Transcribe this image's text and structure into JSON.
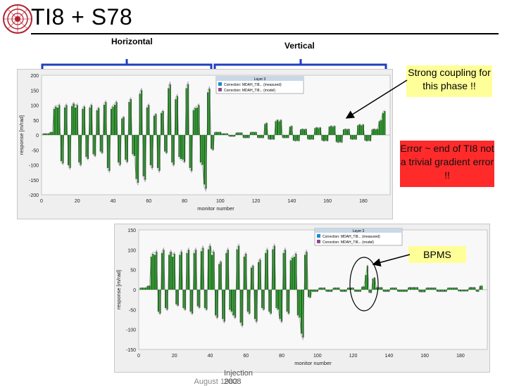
{
  "slide": {
    "title": "TI8 + S78",
    "label_horizontal": "Horizontal",
    "label_vertical": "Vertical",
    "footer": "Injection 2008",
    "footer_overlap": "August 1982",
    "logo_icon": "cern-logo-icon"
  },
  "notes": {
    "coupling": "Strong coupling for this phase !!",
    "error": "Error ~ end of TI8 not a trivial gradient error !!",
    "bpms": "BPMS"
  },
  "colors": {
    "bar": "#117711",
    "line": "#8b4d8b",
    "note_yellow": "#ffff99",
    "note_red": "#ff2a2a",
    "bracket": "#1f3fbf"
  },
  "chart_data": [
    {
      "type": "bar",
      "xlabel": "monitor number",
      "ylabel": "response [m/rad]",
      "xlim": [
        0,
        195
      ],
      "ylim": [
        -200,
        200
      ],
      "xticks": [
        "0",
        "20",
        "40",
        "60",
        "80",
        "100",
        "120",
        "140",
        "160",
        "180"
      ],
      "yticks": [
        "200",
        "150",
        "100",
        "50",
        "0",
        "-50",
        "-100",
        "-150",
        "-200"
      ],
      "legend": {
        "title": "Layer 3",
        "items": [
          "Correction: MDAH_TI8... (measured)",
          "Correction: MDAH_TI8... (model)"
        ],
        "placement": "top-center"
      },
      "amplitude_envelope": [
        [
          0,
          5
        ],
        [
          4,
          10
        ],
        [
          6,
          95
        ],
        [
          8,
          100
        ],
        [
          10,
          -95
        ],
        [
          12,
          100
        ],
        [
          14,
          -110
        ],
        [
          16,
          105
        ],
        [
          18,
          100
        ],
        [
          20,
          -100
        ],
        [
          22,
          95
        ],
        [
          24,
          -80
        ],
        [
          26,
          100
        ],
        [
          28,
          -70
        ],
        [
          30,
          90
        ],
        [
          32,
          -60
        ],
        [
          34,
          110
        ],
        [
          36,
          -120
        ],
        [
          38,
          95
        ],
        [
          40,
          110
        ],
        [
          42,
          -100
        ],
        [
          44,
          60
        ],
        [
          46,
          -90
        ],
        [
          48,
          120
        ],
        [
          50,
          -70
        ],
        [
          52,
          -160
        ],
        [
          54,
          150
        ],
        [
          56,
          -150
        ],
        [
          58,
          100
        ],
        [
          60,
          -110
        ],
        [
          62,
          70
        ],
        [
          64,
          -120
        ],
        [
          66,
          80
        ],
        [
          68,
          -60
        ],
        [
          70,
          170
        ],
        [
          72,
          -100
        ],
        [
          74,
          130
        ],
        [
          76,
          -80
        ],
        [
          78,
          -90
        ],
        [
          80,
          170
        ],
        [
          82,
          -120
        ],
        [
          84,
          90
        ],
        [
          86,
          100
        ],
        [
          88,
          -100
        ],
        [
          90,
          -180
        ],
        [
          92,
          155
        ],
        [
          94,
          -50
        ],
        [
          96,
          10
        ],
        [
          100,
          5
        ],
        [
          104,
          -5
        ],
        [
          108,
          8
        ],
        [
          112,
          -10
        ],
        [
          116,
          10
        ],
        [
          120,
          -10
        ],
        [
          124,
          40
        ],
        [
          126,
          -15
        ],
        [
          130,
          50
        ],
        [
          134,
          -10
        ],
        [
          138,
          30
        ],
        [
          140,
          -20
        ],
        [
          144,
          20
        ],
        [
          148,
          -15
        ],
        [
          152,
          25
        ],
        [
          156,
          -20
        ],
        [
          160,
          30
        ],
        [
          164,
          -25
        ],
        [
          168,
          20
        ],
        [
          172,
          -15
        ],
        [
          176,
          35
        ],
        [
          180,
          -20
        ],
        [
          184,
          20
        ],
        [
          188,
          50
        ],
        [
          190,
          80
        ]
      ]
    },
    {
      "type": "bar",
      "xlabel": "monitor number",
      "ylabel": "response [m/rad]",
      "xlim": [
        0,
        195
      ],
      "ylim": [
        -150,
        150
      ],
      "xticks": [
        "0",
        "20",
        "40",
        "60",
        "80",
        "100",
        "120",
        "140",
        "160",
        "180"
      ],
      "yticks": [
        "150",
        "100",
        "50",
        "0",
        "-50",
        "-100",
        "-150"
      ],
      "legend": {
        "title": "Layer 3",
        "items": [
          "Correction: MDAH_TI8... (measured)",
          "Correction: MDAH_TI8... (model)"
        ],
        "placement": "top-right"
      },
      "amplitude_envelope": [
        [
          0,
          5
        ],
        [
          4,
          10
        ],
        [
          6,
          90
        ],
        [
          8,
          95
        ],
        [
          10,
          -60
        ],
        [
          12,
          100
        ],
        [
          14,
          -50
        ],
        [
          16,
          95
        ],
        [
          18,
          90
        ],
        [
          20,
          -40
        ],
        [
          22,
          95
        ],
        [
          24,
          -50
        ],
        [
          26,
          100
        ],
        [
          28,
          -60
        ],
        [
          30,
          100
        ],
        [
          32,
          -45
        ],
        [
          34,
          105
        ],
        [
          36,
          -50
        ],
        [
          38,
          110
        ],
        [
          40,
          95
        ],
        [
          42,
          -70
        ],
        [
          44,
          70
        ],
        [
          46,
          -80
        ],
        [
          48,
          100
        ],
        [
          50,
          -55
        ],
        [
          52,
          -70
        ],
        [
          54,
          110
        ],
        [
          56,
          -90
        ],
        [
          58,
          90
        ],
        [
          60,
          -60
        ],
        [
          62,
          60
        ],
        [
          64,
          -80
        ],
        [
          66,
          75
        ],
        [
          68,
          -50
        ],
        [
          70,
          100
        ],
        [
          72,
          -60
        ],
        [
          74,
          110
        ],
        [
          76,
          -50
        ],
        [
          78,
          -80
        ],
        [
          80,
          100
        ],
        [
          82,
          -60
        ],
        [
          84,
          80
        ],
        [
          86,
          90
        ],
        [
          88,
          -70
        ],
        [
          90,
          -120
        ],
        [
          92,
          95
        ],
        [
          94,
          -20
        ],
        [
          96,
          -5
        ],
        [
          100,
          5
        ],
        [
          104,
          -5
        ],
        [
          108,
          5
        ],
        [
          112,
          -5
        ],
        [
          116,
          5
        ],
        [
          120,
          -5
        ],
        [
          124,
          8
        ],
        [
          126,
          40
        ],
        [
          127,
          60
        ],
        [
          128,
          -8
        ],
        [
          130,
          30
        ],
        [
          132,
          6
        ],
        [
          136,
          -5
        ],
        [
          140,
          5
        ],
        [
          144,
          -5
        ],
        [
          150,
          6
        ],
        [
          156,
          -6
        ],
        [
          160,
          5
        ],
        [
          166,
          -5
        ],
        [
          172,
          5
        ],
        [
          178,
          -4
        ],
        [
          184,
          6
        ],
        [
          188,
          -5
        ],
        [
          190,
          10
        ]
      ]
    }
  ]
}
